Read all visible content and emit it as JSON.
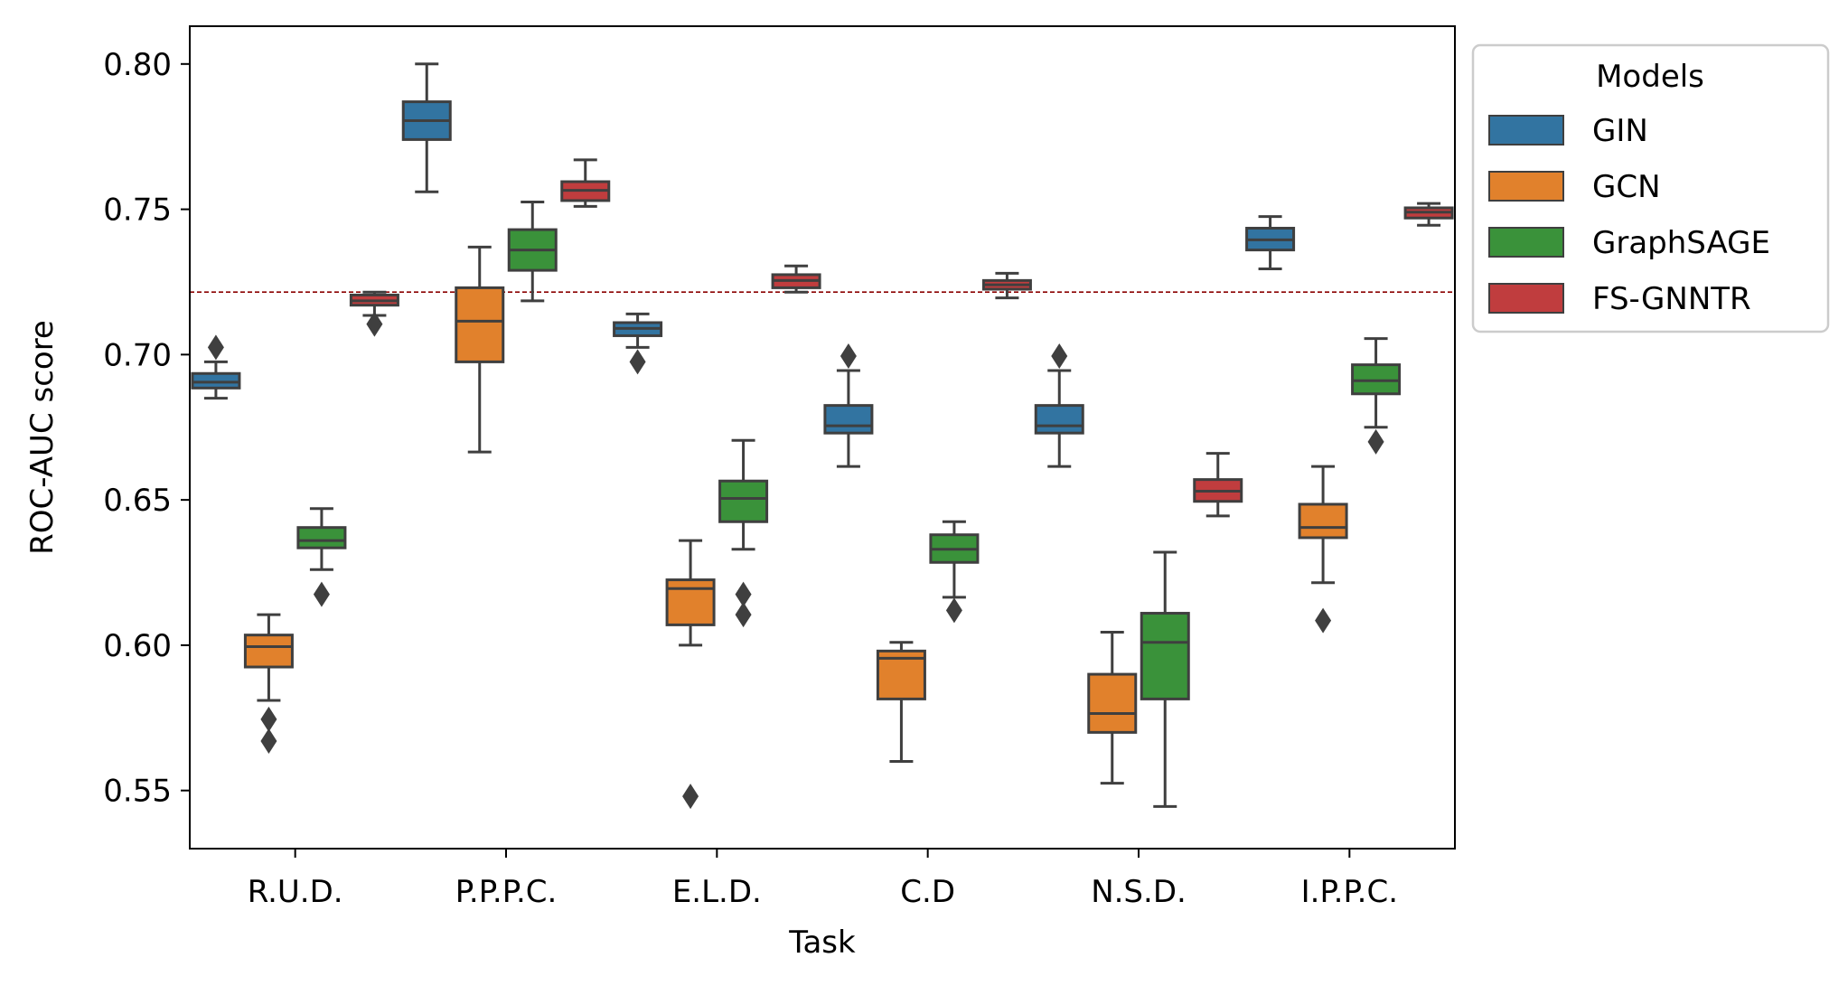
{
  "chart_data": {
    "type": "box",
    "title": "",
    "xlabel": "Task",
    "ylabel": "ROC-AUC score",
    "ylim": [
      0.53,
      0.813
    ],
    "yticks": [
      0.55,
      0.6,
      0.65,
      0.7,
      0.75,
      0.8
    ],
    "ytick_labels": [
      "0.55",
      "0.60",
      "0.65",
      "0.70",
      "0.75",
      "0.80"
    ],
    "categories": [
      "R.U.D.",
      "P.P.P.C.",
      "E.L.D.",
      "C.D",
      "N.S.D.",
      "I.P.P.C."
    ],
    "reference_line": {
      "y": 0.7215,
      "color": "#8b0000",
      "style": "dashed"
    },
    "legend": {
      "title": "Models",
      "placement": "upper-right-outside"
    },
    "grid": false,
    "series": [
      {
        "name": "GIN",
        "color": "#3274a1",
        "boxes": [
          {
            "whisker_low": 0.685,
            "q1": 0.6885,
            "median": 0.6905,
            "q3": 0.6935,
            "whisker_high": 0.6975,
            "outliers": [
              0.7025
            ]
          },
          {
            "whisker_low": 0.756,
            "q1": 0.774,
            "median": 0.7805,
            "q3": 0.787,
            "whisker_high": 0.8,
            "outliers": []
          },
          {
            "whisker_low": 0.7025,
            "q1": 0.7065,
            "median": 0.709,
            "q3": 0.711,
            "whisker_high": 0.714,
            "outliers": [
              0.6975
            ]
          },
          {
            "whisker_low": 0.6615,
            "q1": 0.673,
            "median": 0.6755,
            "q3": 0.6825,
            "whisker_high": 0.6945,
            "outliers": [
              0.6995
            ]
          },
          {
            "whisker_low": 0.6615,
            "q1": 0.673,
            "median": 0.6755,
            "q3": 0.6825,
            "whisker_high": 0.6945,
            "outliers": [
              0.6995
            ]
          },
          {
            "whisker_low": 0.7295,
            "q1": 0.736,
            "median": 0.7395,
            "q3": 0.7435,
            "whisker_high": 0.7475,
            "outliers": []
          }
        ]
      },
      {
        "name": "GCN",
        "color": "#e1812c",
        "boxes": [
          {
            "whisker_low": 0.581,
            "q1": 0.5925,
            "median": 0.5995,
            "q3": 0.6035,
            "whisker_high": 0.6105,
            "outliers": [
              0.5745,
              0.567
            ]
          },
          {
            "whisker_low": 0.6665,
            "q1": 0.6975,
            "median": 0.7115,
            "q3": 0.723,
            "whisker_high": 0.737,
            "outliers": []
          },
          {
            "whisker_low": 0.6,
            "q1": 0.607,
            "median": 0.6195,
            "q3": 0.6225,
            "whisker_high": 0.636,
            "outliers": [
              0.548
            ]
          },
          {
            "whisker_low": 0.56,
            "q1": 0.5815,
            "median": 0.5955,
            "q3": 0.598,
            "whisker_high": 0.601,
            "outliers": []
          },
          {
            "whisker_low": 0.5525,
            "q1": 0.57,
            "median": 0.5765,
            "q3": 0.59,
            "whisker_high": 0.6045,
            "outliers": []
          },
          {
            "whisker_low": 0.6215,
            "q1": 0.637,
            "median": 0.6405,
            "q3": 0.6485,
            "whisker_high": 0.6615,
            "outliers": [
              0.6085
            ]
          }
        ]
      },
      {
        "name": "GraphSAGE",
        "color": "#3a923a",
        "boxes": [
          {
            "whisker_low": 0.626,
            "q1": 0.6335,
            "median": 0.636,
            "q3": 0.6405,
            "whisker_high": 0.647,
            "outliers": [
              0.6175
            ]
          },
          {
            "whisker_low": 0.7185,
            "q1": 0.729,
            "median": 0.736,
            "q3": 0.743,
            "whisker_high": 0.7525,
            "outliers": []
          },
          {
            "whisker_low": 0.633,
            "q1": 0.6425,
            "median": 0.6505,
            "q3": 0.6565,
            "whisker_high": 0.6705,
            "outliers": [
              0.6175,
              0.6105
            ]
          },
          {
            "whisker_low": 0.6165,
            "q1": 0.6285,
            "median": 0.633,
            "q3": 0.638,
            "whisker_high": 0.6425,
            "outliers": [
              0.612
            ]
          },
          {
            "whisker_low": 0.5445,
            "q1": 0.5815,
            "median": 0.601,
            "q3": 0.611,
            "whisker_high": 0.632,
            "outliers": []
          },
          {
            "whisker_low": 0.675,
            "q1": 0.6865,
            "median": 0.691,
            "q3": 0.6965,
            "whisker_high": 0.7055,
            "outliers": [
              0.67
            ]
          }
        ]
      },
      {
        "name": "FS-GNNTR",
        "color": "#c03d3e",
        "boxes": [
          {
            "whisker_low": 0.7135,
            "q1": 0.717,
            "median": 0.7185,
            "q3": 0.7205,
            "whisker_high": 0.7215,
            "outliers": [
              0.7105
            ]
          },
          {
            "whisker_low": 0.751,
            "q1": 0.753,
            "median": 0.7565,
            "q3": 0.7595,
            "whisker_high": 0.767,
            "outliers": []
          },
          {
            "whisker_low": 0.7215,
            "q1": 0.723,
            "median": 0.7255,
            "q3": 0.7275,
            "whisker_high": 0.7305,
            "outliers": []
          },
          {
            "whisker_low": 0.7195,
            "q1": 0.7225,
            "median": 0.724,
            "q3": 0.7255,
            "whisker_high": 0.728,
            "outliers": []
          },
          {
            "whisker_low": 0.6445,
            "q1": 0.6495,
            "median": 0.653,
            "q3": 0.657,
            "whisker_high": 0.666,
            "outliers": []
          },
          {
            "whisker_low": 0.7445,
            "q1": 0.747,
            "median": 0.749,
            "q3": 0.7505,
            "whisker_high": 0.752,
            "outliers": []
          }
        ]
      }
    ]
  }
}
